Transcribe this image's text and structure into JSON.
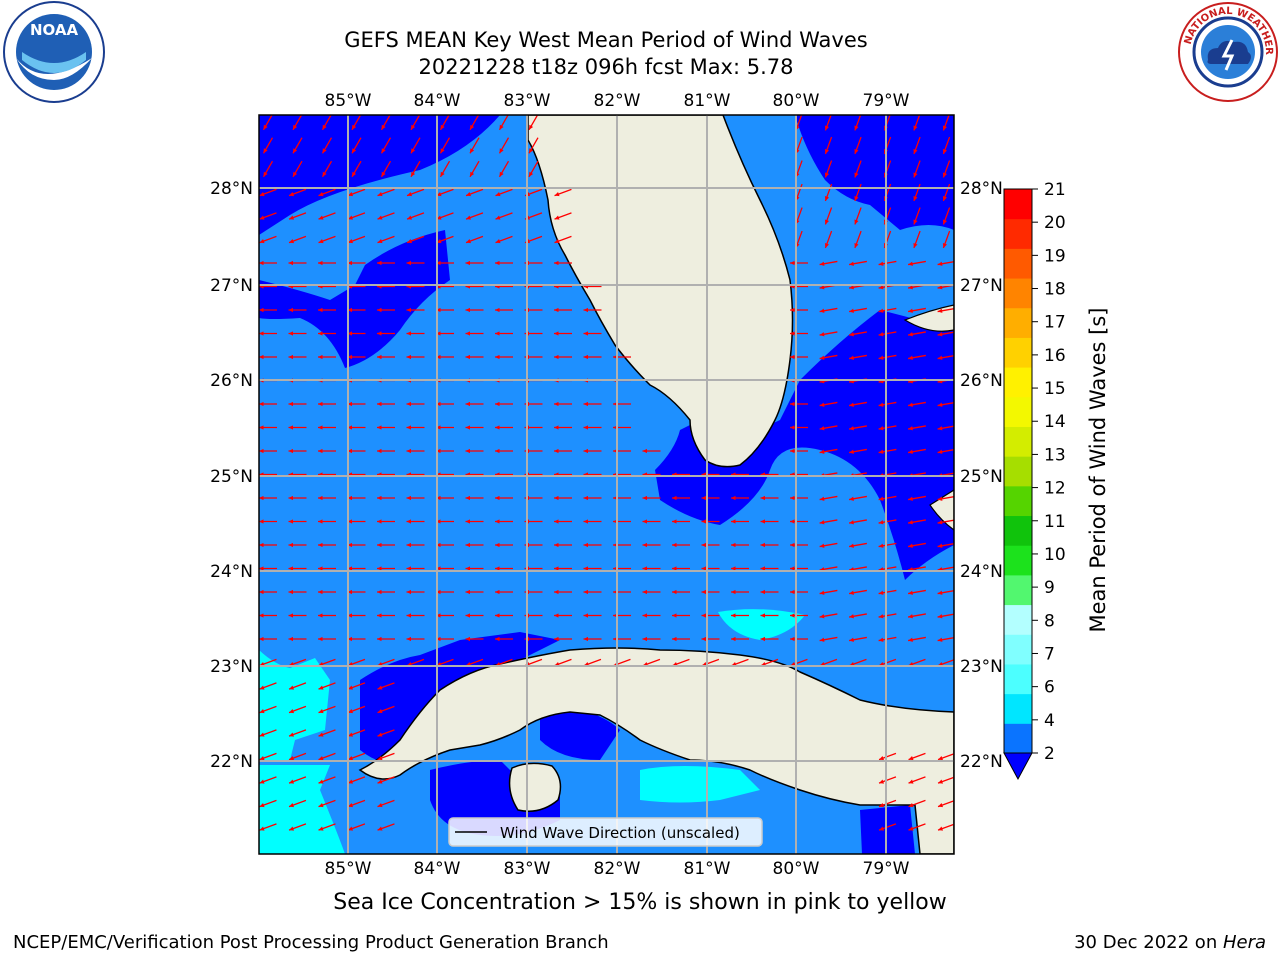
{
  "title_line1": "GEFS MEAN Key West Mean Period of Wind Waves",
  "title_line2": "20221228 t18z 096h fcst   Max: 5.78",
  "logos": {
    "left": "noaa-logo",
    "right": "nws-logo",
    "left_text": "NOAA",
    "right_text": "NATIONAL WEATHER SERVICE"
  },
  "lon_labels": [
    "85°W",
    "84°W",
    "83°W",
    "82°W",
    "81°W",
    "80°W",
    "79°W"
  ],
  "lat_labels": [
    "28°N",
    "27°N",
    "26°N",
    "25°N",
    "24°N",
    "23°N",
    "22°N"
  ],
  "legend_label": "Wind Wave Direction (unscaled)",
  "colorbar": {
    "label": "Mean Period of Wind Waves [s]",
    "ticks": [
      "2",
      "4",
      "6",
      "7",
      "8",
      "9",
      "10",
      "11",
      "12",
      "13",
      "14",
      "15",
      "16",
      "17",
      "18",
      "19",
      "20",
      "21"
    ],
    "colors": [
      "#0a74ff",
      "#00e6ff",
      "#4cffff",
      "#80ffff",
      "#b3ffff",
      "#52f76f",
      "#1ce21c",
      "#10c30c",
      "#55d400",
      "#a6de00",
      "#d3ed00",
      "#f3f800",
      "#fff100",
      "#ffd100",
      "#ffae00",
      "#ff8400",
      "#ff5a00",
      "#ff2a00",
      "#ff0000"
    ],
    "under_color": "#0000ff"
  },
  "map_colors": {
    "land": "#eeeedf",
    "deep": "#0000ff",
    "mid": "#1e90ff",
    "light": "#00ffff",
    "arrow": "#ff0000"
  },
  "footer_note": "Sea Ice Concentration > 15% is shown in pink to yellow",
  "footer_left": "NCEP/EMC/Verification Post Processing Product Generation Branch",
  "footer_right_date": "30 Dec 2022 on ",
  "footer_right_host": "Hera"
}
